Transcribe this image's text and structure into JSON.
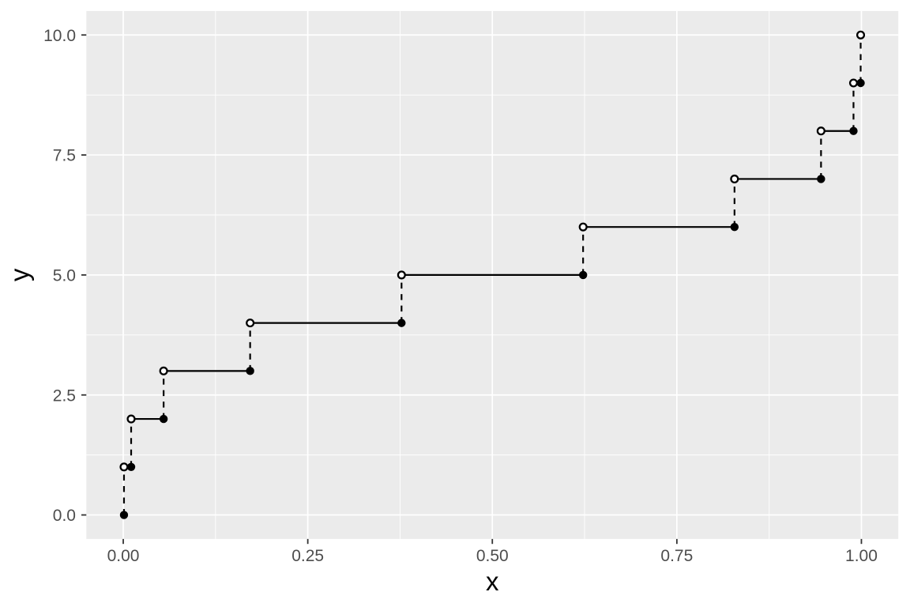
{
  "chart_data": {
    "type": "step",
    "title": "",
    "xlabel": "x",
    "ylabel": "y",
    "xlim": [
      -0.05,
      1.05
    ],
    "ylim": [
      -0.5,
      10.5
    ],
    "grid": true,
    "legend": null,
    "x_ticks": {
      "values": [
        0,
        0.25,
        0.5,
        0.75,
        1
      ],
      "labels": [
        "0.00",
        "0.25",
        "0.50",
        "0.75",
        "1.00"
      ]
    },
    "y_ticks": {
      "values": [
        0,
        2.5,
        5,
        7.5,
        10
      ],
      "labels": [
        "0.0",
        "2.5",
        "5.0",
        "7.5",
        "10.0"
      ]
    },
    "x_minor_ticks": [
      0.125,
      0.375,
      0.625,
      0.875
    ],
    "y_minor_ticks": [
      1.25,
      3.75,
      6.25,
      8.75
    ],
    "jump_x": [
      0.001,
      0.0107,
      0.0547,
      0.1719,
      0.377,
      0.623,
      0.8281,
      0.9453,
      0.9893,
      0.999
    ],
    "levels": [
      0,
      1,
      2,
      3,
      4,
      5,
      6,
      7,
      8,
      9,
      10
    ],
    "closed_points": [
      {
        "x": 0.001,
        "y": 0
      },
      {
        "x": 0.0107,
        "y": 1
      },
      {
        "x": 0.0547,
        "y": 2
      },
      {
        "x": 0.1719,
        "y": 3
      },
      {
        "x": 0.377,
        "y": 4
      },
      {
        "x": 0.623,
        "y": 5
      },
      {
        "x": 0.8281,
        "y": 6
      },
      {
        "x": 0.9453,
        "y": 7
      },
      {
        "x": 0.9893,
        "y": 8
      },
      {
        "x": 0.999,
        "y": 9
      }
    ],
    "open_points": [
      {
        "x": 0.001,
        "y": 1
      },
      {
        "x": 0.0107,
        "y": 2
      },
      {
        "x": 0.0547,
        "y": 3
      },
      {
        "x": 0.1719,
        "y": 4
      },
      {
        "x": 0.377,
        "y": 5
      },
      {
        "x": 0.623,
        "y": 6
      },
      {
        "x": 0.8281,
        "y": 7
      },
      {
        "x": 0.9453,
        "y": 8
      },
      {
        "x": 0.9893,
        "y": 9
      },
      {
        "x": 0.999,
        "y": 10
      }
    ],
    "solid_segments": [
      {
        "y": 1,
        "x1": 0.001,
        "x2": 0.0107
      },
      {
        "y": 2,
        "x1": 0.0107,
        "x2": 0.0547
      },
      {
        "y": 3,
        "x1": 0.0547,
        "x2": 0.1719
      },
      {
        "y": 4,
        "x1": 0.1719,
        "x2": 0.377
      },
      {
        "y": 5,
        "x1": 0.377,
        "x2": 0.623
      },
      {
        "y": 6,
        "x1": 0.623,
        "x2": 0.8281
      },
      {
        "y": 7,
        "x1": 0.8281,
        "x2": 0.9453
      },
      {
        "y": 8,
        "x1": 0.9453,
        "x2": 0.9893
      },
      {
        "y": 9,
        "x1": 0.9893,
        "x2": 0.999
      }
    ],
    "dashed_segments": [
      {
        "x": 0.001,
        "y1": 0,
        "y2": 1
      },
      {
        "x": 0.0107,
        "y1": 1,
        "y2": 2
      },
      {
        "x": 0.0547,
        "y1": 2,
        "y2": 3
      },
      {
        "x": 0.1719,
        "y1": 3,
        "y2": 4
      },
      {
        "x": 0.377,
        "y1": 4,
        "y2": 5
      },
      {
        "x": 0.623,
        "y1": 5,
        "y2": 6
      },
      {
        "x": 0.8281,
        "y1": 6,
        "y2": 7
      },
      {
        "x": 0.9453,
        "y1": 7,
        "y2": 8
      },
      {
        "x": 0.9893,
        "y1": 8,
        "y2": 9
      },
      {
        "x": 0.999,
        "y1": 9,
        "y2": 10
      }
    ],
    "styles": {
      "background": "#FFFFFF",
      "panel_bg": "#EBEBEB",
      "grid_color": "#FFFFFF",
      "line_color": "#000000",
      "point_color": "#000000",
      "open_point_fill": "#FFFFFF",
      "tick_color": "#333333",
      "tick_label_color": "#4D4D4D",
      "axis_title_color": "#000000"
    }
  }
}
